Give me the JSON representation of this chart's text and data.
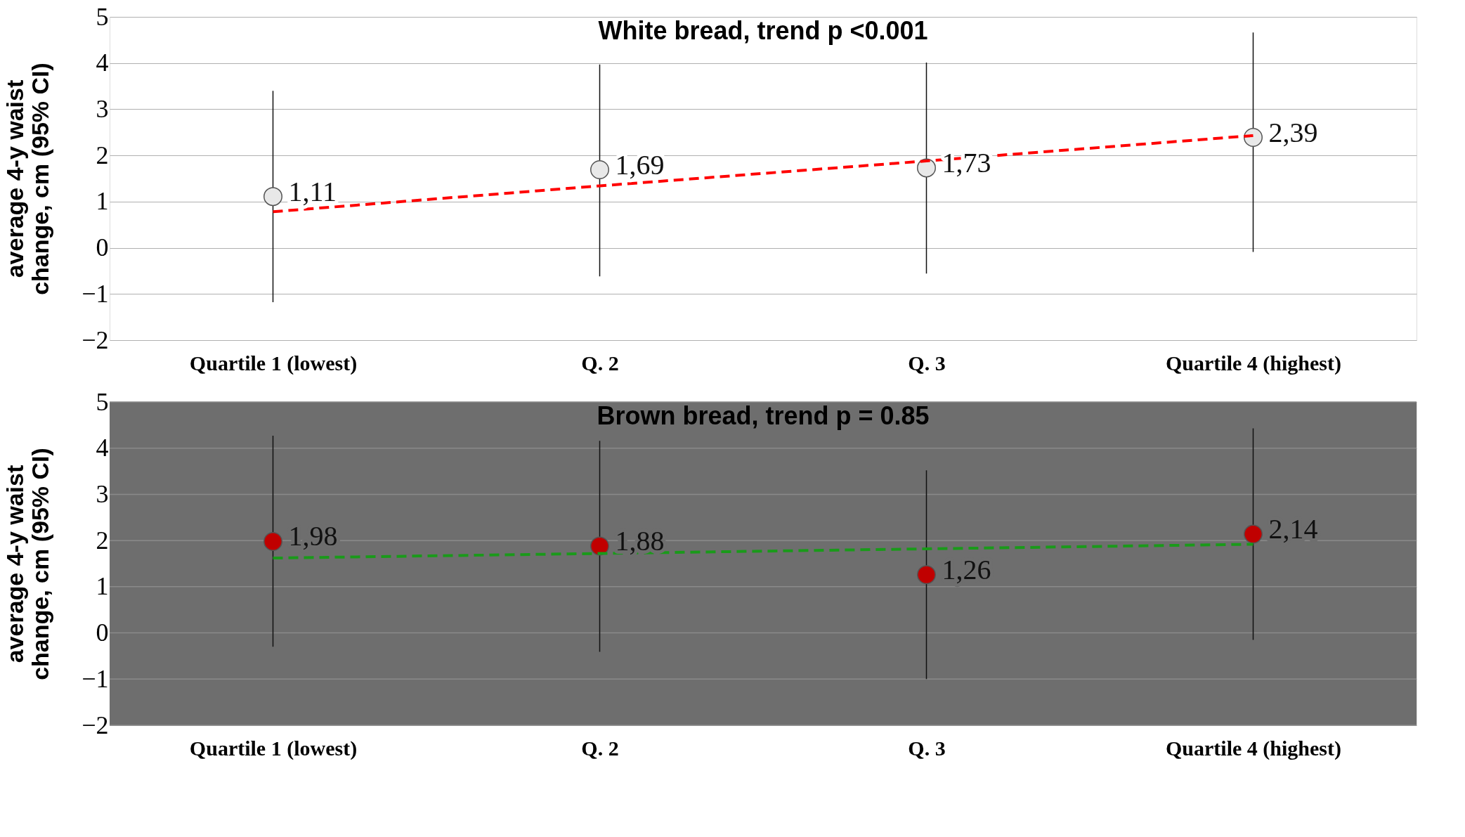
{
  "chart_data": [
    {
      "type": "scatter",
      "title": "White bread, trend p <0.001",
      "ylabel": "average 4-y waist change, cm (95% CI)",
      "categories": [
        "Quartile 1 (lowest)",
        "Q. 2",
        "Q. 3",
        "Quartile 4 (highest)"
      ],
      "series": [
        {
          "marker": "circle",
          "color": "#e8e8e8",
          "values": [
            1.11,
            1.69,
            1.73,
            2.39
          ],
          "errors": [
            [
              -1.18,
              3.4
            ],
            [
              -0.62,
              3.97
            ],
            [
              -0.56,
              4.01
            ],
            [
              -0.09,
              4.66
            ]
          ],
          "value_labels": [
            "1,11",
            "1,69",
            "1,73",
            "2,39"
          ]
        },
        {
          "type": "line",
          "color": "#ff0000",
          "line_style": "dashed",
          "values": [
            0.78,
            1.34,
            1.88,
            2.43
          ]
        }
      ],
      "ylim": [
        -2,
        5
      ],
      "yticks": [
        -2,
        -1,
        0,
        1,
        2,
        3,
        4,
        5
      ],
      "grid": "y"
    },
    {
      "type": "scatter",
      "title": "Brown bread, trend p = 0.85",
      "ylabel": "average 4-y waist change, cm (95% CI)",
      "categories": [
        "Quartile 1 (lowest)",
        "Q. 2",
        "Q. 3",
        "Quartile 4 (highest)"
      ],
      "series": [
        {
          "marker": "circle",
          "color": "#c00000",
          "values": [
            1.98,
            1.88,
            1.26,
            2.14
          ],
          "errors": [
            [
              -0.3,
              4.27
            ],
            [
              -0.41,
              4.16
            ],
            [
              -1.0,
              3.52
            ],
            [
              -0.15,
              4.43
            ]
          ],
          "value_labels": [
            "1,98",
            "1,88",
            "1,26",
            "2,14"
          ]
        },
        {
          "type": "line",
          "color": "#1a9a1a",
          "line_style": "dashed",
          "values": [
            1.62,
            1.72,
            1.82,
            1.92
          ]
        }
      ],
      "bands": [
        {
          "axis": "y",
          "from": -2,
          "to": 5,
          "color": "#6e6e6e"
        }
      ],
      "ylim": [
        -2,
        5
      ],
      "yticks": [
        -2,
        -1,
        0,
        1,
        2,
        3,
        4,
        5
      ],
      "grid": "y"
    }
  ]
}
